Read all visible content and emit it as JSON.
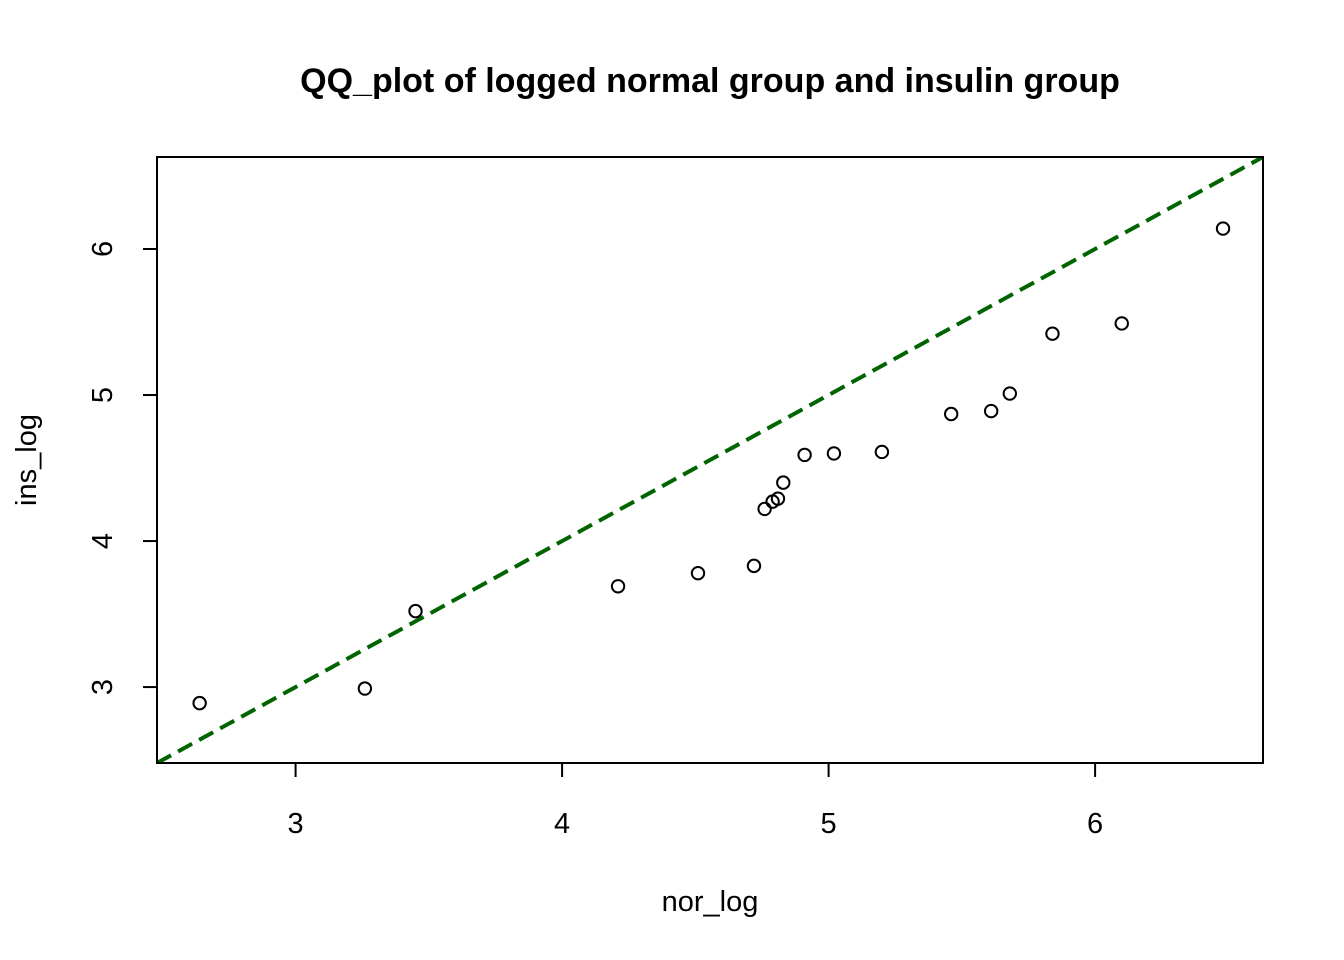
{
  "chart_data": {
    "type": "scatter",
    "title": "QQ_plot of logged normal group and insulin group",
    "xlabel": "nor_log",
    "ylabel": "ins_log",
    "xlim": [
      2.48,
      6.63
    ],
    "ylim": [
      2.48,
      6.63
    ],
    "x_ticks": [
      3,
      4,
      5,
      6
    ],
    "x_tick_labels": [
      "3",
      "4",
      "5",
      "6"
    ],
    "y_ticks": [
      3,
      4,
      5,
      6
    ],
    "y_tick_labels": [
      "3",
      "4",
      "5",
      "6"
    ],
    "grid": false,
    "legend": "none",
    "points": {
      "x": [
        2.64,
        3.26,
        3.45,
        4.21,
        4.51,
        4.72,
        4.76,
        4.79,
        4.81,
        4.83,
        4.91,
        5.02,
        5.2,
        5.46,
        5.61,
        5.68,
        5.84,
        6.1,
        6.48
      ],
      "y": [
        2.89,
        2.99,
        3.52,
        3.69,
        3.78,
        3.83,
        4.22,
        4.27,
        4.29,
        4.4,
        4.59,
        4.6,
        4.61,
        4.87,
        4.89,
        5.01,
        5.42,
        5.49,
        6.14
      ],
      "marker": "open-circle",
      "color": "#000000"
    },
    "reference_line": {
      "intercept": 0,
      "slope": 1,
      "style": "dashed",
      "color": "#006400"
    }
  }
}
